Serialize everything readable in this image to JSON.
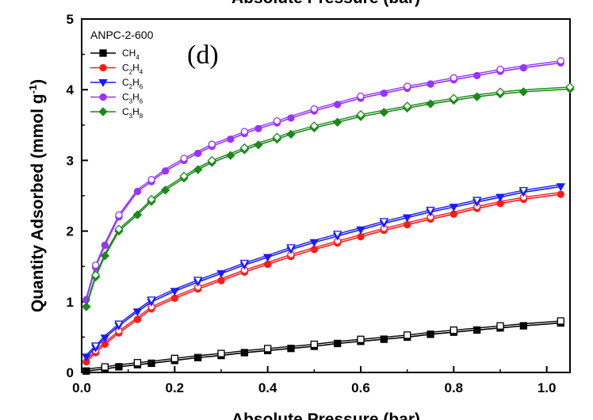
{
  "chart_data": {
    "type": "line",
    "title": "",
    "top_label": "Absolute Pressure (bar)",
    "panel_label": "(d)",
    "xlabel": "Absolute Pressure (bar)",
    "ylabel_main": "Quantity Adsorbed (mmol g",
    "ylabel_sup": "-1",
    "ylabel_close": ")",
    "xlim": [
      0.0,
      1.05
    ],
    "ylim": [
      0,
      5
    ],
    "xticks": [
      "0.0",
      "0.2",
      "0.4",
      "0.6",
      "0.8",
      "1.0"
    ],
    "yticks": [
      "0",
      "1",
      "2",
      "3",
      "4",
      "5"
    ],
    "legend_title": "ANPC-2-600",
    "legend_position": "top-left",
    "series": [
      {
        "name": "CH4",
        "label_base": "CH",
        "label_sub": "4",
        "color": "#000000",
        "marker": "square",
        "x": [
          0.01,
          0.05,
          0.08,
          0.12,
          0.15,
          0.2,
          0.25,
          0.3,
          0.35,
          0.4,
          0.45,
          0.5,
          0.55,
          0.6,
          0.65,
          0.7,
          0.75,
          0.8,
          0.85,
          0.9,
          0.95,
          1.03
        ],
        "values": [
          0.02,
          0.05,
          0.08,
          0.11,
          0.13,
          0.17,
          0.21,
          0.24,
          0.28,
          0.31,
          0.34,
          0.37,
          0.41,
          0.44,
          0.47,
          0.5,
          0.54,
          0.57,
          0.6,
          0.63,
          0.66,
          0.7
        ]
      },
      {
        "name": "C2H4",
        "label_base": "C",
        "label_sub": "2",
        "label_base2": "H",
        "label_sub2": "4",
        "color": "#ff1a1a",
        "marker": "circle",
        "x": [
          0.01,
          0.03,
          0.05,
          0.08,
          0.12,
          0.15,
          0.2,
          0.25,
          0.3,
          0.35,
          0.4,
          0.45,
          0.5,
          0.55,
          0.6,
          0.65,
          0.7,
          0.75,
          0.8,
          0.85,
          0.9,
          0.95,
          1.03
        ],
        "values": [
          0.15,
          0.28,
          0.4,
          0.56,
          0.75,
          0.9,
          1.05,
          1.18,
          1.3,
          1.42,
          1.53,
          1.64,
          1.74,
          1.83,
          1.92,
          2.01,
          2.09,
          2.17,
          2.24,
          2.32,
          2.39,
          2.45,
          2.52
        ]
      },
      {
        "name": "C2H6",
        "label_base": "C",
        "label_sub": "2",
        "label_base2": "H",
        "label_sub2": "6",
        "color": "#1a1aff",
        "marker": "triangle-down",
        "x": [
          0.01,
          0.03,
          0.05,
          0.08,
          0.12,
          0.15,
          0.2,
          0.25,
          0.3,
          0.35,
          0.4,
          0.45,
          0.5,
          0.55,
          0.6,
          0.65,
          0.7,
          0.75,
          0.8,
          0.85,
          0.9,
          0.95,
          1.03
        ],
        "values": [
          0.22,
          0.35,
          0.49,
          0.66,
          0.86,
          1.0,
          1.15,
          1.28,
          1.4,
          1.52,
          1.63,
          1.74,
          1.84,
          1.93,
          2.02,
          2.11,
          2.19,
          2.27,
          2.34,
          2.41,
          2.48,
          2.55,
          2.63
        ]
      },
      {
        "name": "C3H6",
        "label_base": "C",
        "label_sub": "3",
        "label_base2": "H",
        "label_sub2": "6",
        "color": "#9933ff",
        "marker": "circle",
        "x": [
          0.01,
          0.03,
          0.05,
          0.08,
          0.12,
          0.15,
          0.18,
          0.22,
          0.25,
          0.28,
          0.32,
          0.35,
          0.38,
          0.42,
          0.45,
          0.5,
          0.55,
          0.6,
          0.65,
          0.7,
          0.75,
          0.8,
          0.85,
          0.9,
          0.95,
          1.03
        ],
        "values": [
          1.03,
          1.49,
          1.8,
          2.2,
          2.56,
          2.7,
          2.85,
          3.0,
          3.1,
          3.2,
          3.3,
          3.38,
          3.45,
          3.53,
          3.6,
          3.7,
          3.79,
          3.88,
          3.95,
          4.02,
          4.08,
          4.14,
          4.2,
          4.26,
          4.31,
          4.38
        ]
      },
      {
        "name": "C3H8",
        "label_base": "C",
        "label_sub": "3",
        "label_base2": "H",
        "label_sub2": "8",
        "color": "#1a8a1a",
        "marker": "diamond",
        "x": [
          0.01,
          0.03,
          0.05,
          0.08,
          0.12,
          0.15,
          0.18,
          0.22,
          0.25,
          0.28,
          0.32,
          0.35,
          0.38,
          0.42,
          0.45,
          0.5,
          0.55,
          0.6,
          0.65,
          0.7,
          0.75,
          0.8,
          0.85,
          0.9,
          0.95,
          1.05
        ],
        "values": [
          0.93,
          1.35,
          1.65,
          2.0,
          2.23,
          2.42,
          2.58,
          2.75,
          2.87,
          2.97,
          3.07,
          3.15,
          3.22,
          3.3,
          3.37,
          3.46,
          3.54,
          3.62,
          3.68,
          3.74,
          3.8,
          3.85,
          3.9,
          3.94,
          3.97,
          4.01
        ]
      }
    ]
  }
}
